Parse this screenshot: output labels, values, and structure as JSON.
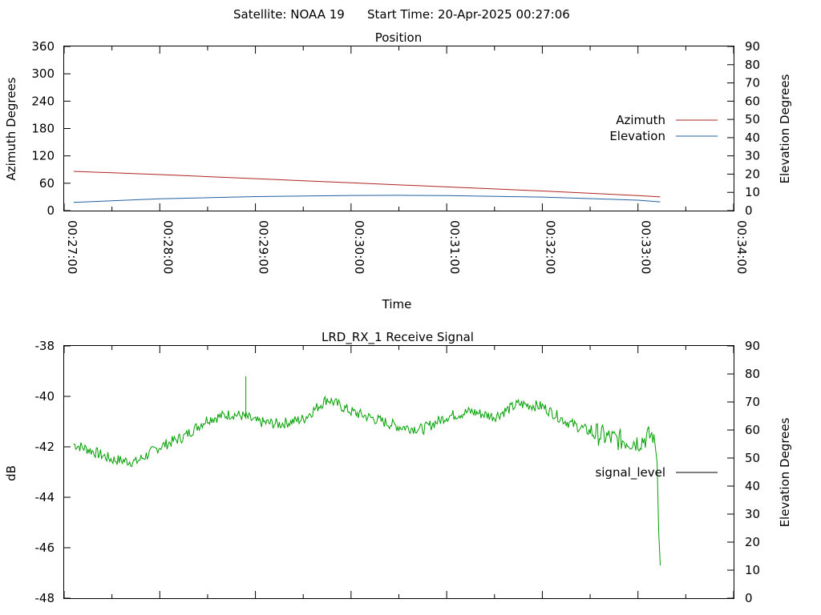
{
  "header": {
    "satellite": "Satellite: NOAA 19",
    "start_time": "Start Time: 20-Apr-2025 00:27:06"
  },
  "chart_data": [
    {
      "type": "line",
      "title": "Position",
      "xlabel": "Time",
      "ylabel": "Azimuth Degrees",
      "y2label": "Elevation Degrees",
      "x_ticks": [
        "00:27:00",
        "00:28:00",
        "00:29:00",
        "00:30:00",
        "00:31:00",
        "00:32:00",
        "00:33:00",
        "00:34:00"
      ],
      "y_ticks": [
        "0",
        "60",
        "120",
        "180",
        "240",
        "300",
        "360"
      ],
      "y2_ticks": [
        "0",
        "10",
        "20",
        "30",
        "40",
        "50",
        "60",
        "70",
        "80",
        "90"
      ],
      "xlim": [
        "00:27:00",
        "00:34:00"
      ],
      "ylim": [
        0,
        360
      ],
      "y2lim": [
        0,
        90
      ],
      "grid": false,
      "legend_position": "right",
      "series": [
        {
          "name": "Azimuth",
          "axis": "left",
          "color": "#b22222",
          "x": [
            "00:27:06",
            "00:28:00",
            "00:29:00",
            "00:30:00",
            "00:31:00",
            "00:32:00",
            "00:33:00",
            "00:33:14"
          ],
          "values": [
            86,
            79,
            70,
            61,
            52,
            43,
            33,
            30
          ]
        },
        {
          "name": "Elevation",
          "axis": "right",
          "color": "#1f5f9f",
          "x": [
            "00:27:06",
            "00:28:00",
            "00:29:00",
            "00:30:00",
            "00:30:30",
            "00:31:00",
            "00:32:00",
            "00:33:00",
            "00:33:14"
          ],
          "values": [
            4.5,
            6.5,
            7.7,
            8.3,
            8.4,
            8.2,
            7.4,
            5.7,
            4.8
          ]
        }
      ]
    },
    {
      "type": "line",
      "title": "LRD_RX_1 Receive Signal",
      "ylabel": "dB",
      "y2label": "Elevation Degrees",
      "y_ticks": [
        "-48",
        "-46",
        "-44",
        "-42",
        "-40",
        "-38"
      ],
      "y2_ticks": [
        "0",
        "10",
        "20",
        "30",
        "40",
        "50",
        "60",
        "70",
        "80",
        "90"
      ],
      "xlim": [
        "00:27:00",
        "00:34:00"
      ],
      "ylim": [
        -48,
        -38
      ],
      "y2lim": [
        0,
        90
      ],
      "grid": false,
      "legend_position": "right",
      "series": [
        {
          "name": "signal_level",
          "axis": "left",
          "color": "#00a000",
          "x": [
            "00:27:06",
            "00:27:15",
            "00:27:30",
            "00:27:45",
            "00:28:00",
            "00:28:15",
            "00:28:30",
            "00:28:45",
            "00:28:54",
            "00:29:00",
            "00:29:15",
            "00:29:30",
            "00:29:45",
            "00:30:00",
            "00:30:15",
            "00:30:30",
            "00:30:45",
            "00:31:00",
            "00:31:15",
            "00:31:30",
            "00:31:45",
            "00:32:00",
            "00:32:15",
            "00:32:30",
            "00:32:45",
            "00:33:00",
            "00:33:10",
            "00:33:12",
            "00:33:13",
            "00:33:14"
          ],
          "values": [
            -41.9,
            -42.1,
            -42.5,
            -42.6,
            -42.0,
            -41.6,
            -40.9,
            -40.7,
            -40.8,
            -41.0,
            -41.1,
            -40.9,
            -40.1,
            -40.6,
            -40.9,
            -41.2,
            -41.3,
            -40.8,
            -40.6,
            -40.8,
            -40.3,
            -40.4,
            -41.0,
            -41.4,
            -41.7,
            -41.8,
            -41.5,
            -42.6,
            -45.4,
            -46.7
          ]
        }
      ]
    }
  ]
}
